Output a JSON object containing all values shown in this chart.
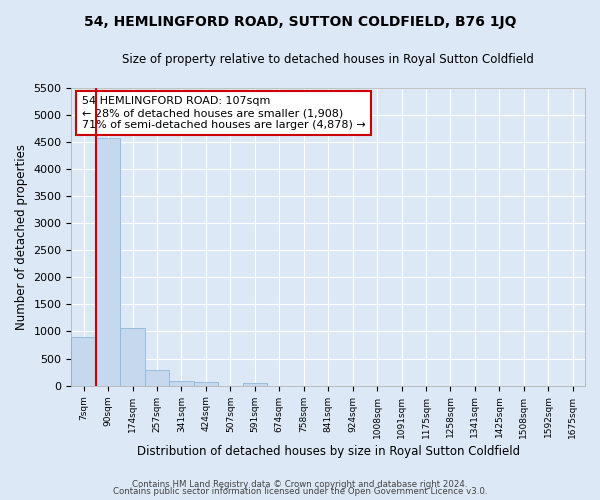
{
  "title": "54, HEMLINGFORD ROAD, SUTTON COLDFIELD, B76 1JQ",
  "subtitle": "Size of property relative to detached houses in Royal Sutton Coldfield",
  "xlabel": "Distribution of detached houses by size in Royal Sutton Coldfield",
  "ylabel": "Number of detached properties",
  "bar_values": [
    900,
    4560,
    1060,
    290,
    90,
    60,
    0,
    50,
    0,
    0,
    0,
    0,
    0,
    0,
    0,
    0,
    0,
    0,
    0,
    0,
    0
  ],
  "bar_labels": [
    "7sqm",
    "90sqm",
    "174sqm",
    "257sqm",
    "341sqm",
    "424sqm",
    "507sqm",
    "591sqm",
    "674sqm",
    "758sqm",
    "841sqm",
    "924sqm",
    "1008sqm",
    "1091sqm",
    "1175sqm",
    "1258sqm",
    "1341sqm",
    "1425sqm",
    "1508sqm",
    "1592sqm",
    "1675sqm"
  ],
  "bar_color": "#c5d8ed",
  "bar_edge_color": "#8fb8d8",
  "vline_color": "#cc0000",
  "annotation_text": "54 HEMLINGFORD ROAD: 107sqm\n← 28% of detached houses are smaller (1,908)\n71% of semi-detached houses are larger (4,878) →",
  "annotation_box_color": "#ffffff",
  "annotation_box_edge": "#cc0000",
  "ylim": [
    0,
    5500
  ],
  "yticks": [
    0,
    500,
    1000,
    1500,
    2000,
    2500,
    3000,
    3500,
    4000,
    4500,
    5000,
    5500
  ],
  "footer1": "Contains HM Land Registry data © Crown copyright and database right 2024.",
  "footer2": "Contains public sector information licensed under the Open Government Licence v3.0.",
  "background_color": "#dce8f5",
  "grid_color": "#ffffff"
}
